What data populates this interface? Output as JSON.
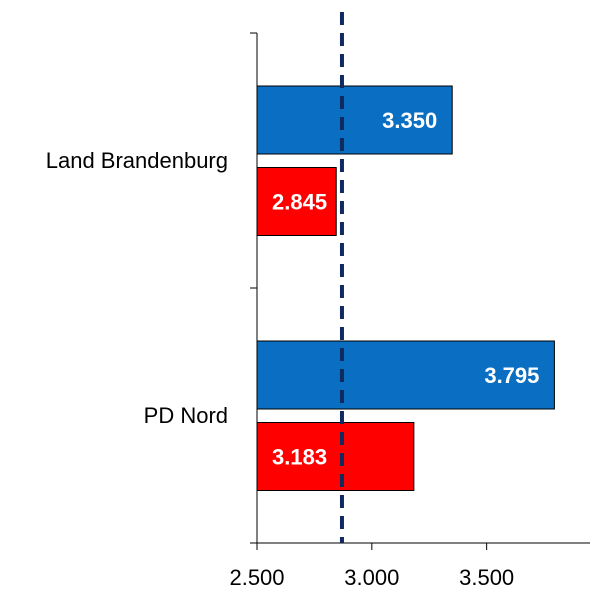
{
  "chart_data": {
    "type": "barh",
    "categories": [
      "Land Brandenburg",
      "PD Nord"
    ],
    "series": [
      {
        "color": "#0a6fc2",
        "values": [
          3350,
          3795
        ],
        "value_labels": [
          "3.350",
          "3.795"
        ]
      },
      {
        "color": "#ff0000",
        "values": [
          2845,
          3183
        ],
        "value_labels": [
          "2.845",
          "3.183"
        ]
      }
    ],
    "xlim": [
      2500,
      3950
    ],
    "xticks": [
      {
        "value": 2500,
        "label": "2.500"
      },
      {
        "value": 3000,
        "label": "3.000"
      },
      {
        "value": 3500,
        "label": "3.500"
      }
    ],
    "reference_line": {
      "value": 2870,
      "color": "#102a60"
    }
  }
}
